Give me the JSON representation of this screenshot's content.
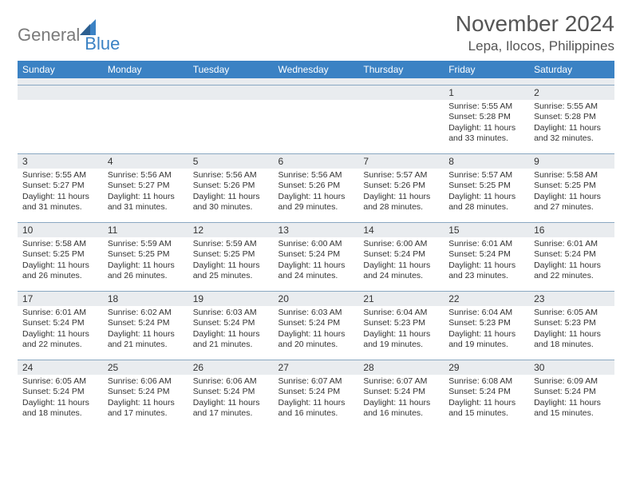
{
  "logo": {
    "text1": "General",
    "text2": "Blue"
  },
  "title": "November 2024",
  "location": "Lepa, Ilocos, Philippines",
  "colors": {
    "header_bar": "#3b82c4",
    "header_text": "#ffffff",
    "band": "#e9ecef",
    "rule": "#8aa8c2",
    "logo_gray": "#7a7a7a",
    "logo_blue": "#3b82c4",
    "text": "#333333"
  },
  "days_of_week": [
    "Sunday",
    "Monday",
    "Tuesday",
    "Wednesday",
    "Thursday",
    "Friday",
    "Saturday"
  ],
  "weeks": [
    [
      {
        "n": "",
        "lines": []
      },
      {
        "n": "",
        "lines": []
      },
      {
        "n": "",
        "lines": []
      },
      {
        "n": "",
        "lines": []
      },
      {
        "n": "",
        "lines": []
      },
      {
        "n": "1",
        "lines": [
          "Sunrise: 5:55 AM",
          "Sunset: 5:28 PM",
          "Daylight: 11 hours and 33 minutes."
        ]
      },
      {
        "n": "2",
        "lines": [
          "Sunrise: 5:55 AM",
          "Sunset: 5:28 PM",
          "Daylight: 11 hours and 32 minutes."
        ]
      }
    ],
    [
      {
        "n": "3",
        "lines": [
          "Sunrise: 5:55 AM",
          "Sunset: 5:27 PM",
          "Daylight: 11 hours and 31 minutes."
        ]
      },
      {
        "n": "4",
        "lines": [
          "Sunrise: 5:56 AM",
          "Sunset: 5:27 PM",
          "Daylight: 11 hours and 31 minutes."
        ]
      },
      {
        "n": "5",
        "lines": [
          "Sunrise: 5:56 AM",
          "Sunset: 5:26 PM",
          "Daylight: 11 hours and 30 minutes."
        ]
      },
      {
        "n": "6",
        "lines": [
          "Sunrise: 5:56 AM",
          "Sunset: 5:26 PM",
          "Daylight: 11 hours and 29 minutes."
        ]
      },
      {
        "n": "7",
        "lines": [
          "Sunrise: 5:57 AM",
          "Sunset: 5:26 PM",
          "Daylight: 11 hours and 28 minutes."
        ]
      },
      {
        "n": "8",
        "lines": [
          "Sunrise: 5:57 AM",
          "Sunset: 5:25 PM",
          "Daylight: 11 hours and 28 minutes."
        ]
      },
      {
        "n": "9",
        "lines": [
          "Sunrise: 5:58 AM",
          "Sunset: 5:25 PM",
          "Daylight: 11 hours and 27 minutes."
        ]
      }
    ],
    [
      {
        "n": "10",
        "lines": [
          "Sunrise: 5:58 AM",
          "Sunset: 5:25 PM",
          "Daylight: 11 hours and 26 minutes."
        ]
      },
      {
        "n": "11",
        "lines": [
          "Sunrise: 5:59 AM",
          "Sunset: 5:25 PM",
          "Daylight: 11 hours and 26 minutes."
        ]
      },
      {
        "n": "12",
        "lines": [
          "Sunrise: 5:59 AM",
          "Sunset: 5:25 PM",
          "Daylight: 11 hours and 25 minutes."
        ]
      },
      {
        "n": "13",
        "lines": [
          "Sunrise: 6:00 AM",
          "Sunset: 5:24 PM",
          "Daylight: 11 hours and 24 minutes."
        ]
      },
      {
        "n": "14",
        "lines": [
          "Sunrise: 6:00 AM",
          "Sunset: 5:24 PM",
          "Daylight: 11 hours and 24 minutes."
        ]
      },
      {
        "n": "15",
        "lines": [
          "Sunrise: 6:01 AM",
          "Sunset: 5:24 PM",
          "Daylight: 11 hours and 23 minutes."
        ]
      },
      {
        "n": "16",
        "lines": [
          "Sunrise: 6:01 AM",
          "Sunset: 5:24 PM",
          "Daylight: 11 hours and 22 minutes."
        ]
      }
    ],
    [
      {
        "n": "17",
        "lines": [
          "Sunrise: 6:01 AM",
          "Sunset: 5:24 PM",
          "Daylight: 11 hours and 22 minutes."
        ]
      },
      {
        "n": "18",
        "lines": [
          "Sunrise: 6:02 AM",
          "Sunset: 5:24 PM",
          "Daylight: 11 hours and 21 minutes."
        ]
      },
      {
        "n": "19",
        "lines": [
          "Sunrise: 6:03 AM",
          "Sunset: 5:24 PM",
          "Daylight: 11 hours and 21 minutes."
        ]
      },
      {
        "n": "20",
        "lines": [
          "Sunrise: 6:03 AM",
          "Sunset: 5:24 PM",
          "Daylight: 11 hours and 20 minutes."
        ]
      },
      {
        "n": "21",
        "lines": [
          "Sunrise: 6:04 AM",
          "Sunset: 5:23 PM",
          "Daylight: 11 hours and 19 minutes."
        ]
      },
      {
        "n": "22",
        "lines": [
          "Sunrise: 6:04 AM",
          "Sunset: 5:23 PM",
          "Daylight: 11 hours and 19 minutes."
        ]
      },
      {
        "n": "23",
        "lines": [
          "Sunrise: 6:05 AM",
          "Sunset: 5:23 PM",
          "Daylight: 11 hours and 18 minutes."
        ]
      }
    ],
    [
      {
        "n": "24",
        "lines": [
          "Sunrise: 6:05 AM",
          "Sunset: 5:24 PM",
          "Daylight: 11 hours and 18 minutes."
        ]
      },
      {
        "n": "25",
        "lines": [
          "Sunrise: 6:06 AM",
          "Sunset: 5:24 PM",
          "Daylight: 11 hours and 17 minutes."
        ]
      },
      {
        "n": "26",
        "lines": [
          "Sunrise: 6:06 AM",
          "Sunset: 5:24 PM",
          "Daylight: 11 hours and 17 minutes."
        ]
      },
      {
        "n": "27",
        "lines": [
          "Sunrise: 6:07 AM",
          "Sunset: 5:24 PM",
          "Daylight: 11 hours and 16 minutes."
        ]
      },
      {
        "n": "28",
        "lines": [
          "Sunrise: 6:07 AM",
          "Sunset: 5:24 PM",
          "Daylight: 11 hours and 16 minutes."
        ]
      },
      {
        "n": "29",
        "lines": [
          "Sunrise: 6:08 AM",
          "Sunset: 5:24 PM",
          "Daylight: 11 hours and 15 minutes."
        ]
      },
      {
        "n": "30",
        "lines": [
          "Sunrise: 6:09 AM",
          "Sunset: 5:24 PM",
          "Daylight: 11 hours and 15 minutes."
        ]
      }
    ]
  ]
}
